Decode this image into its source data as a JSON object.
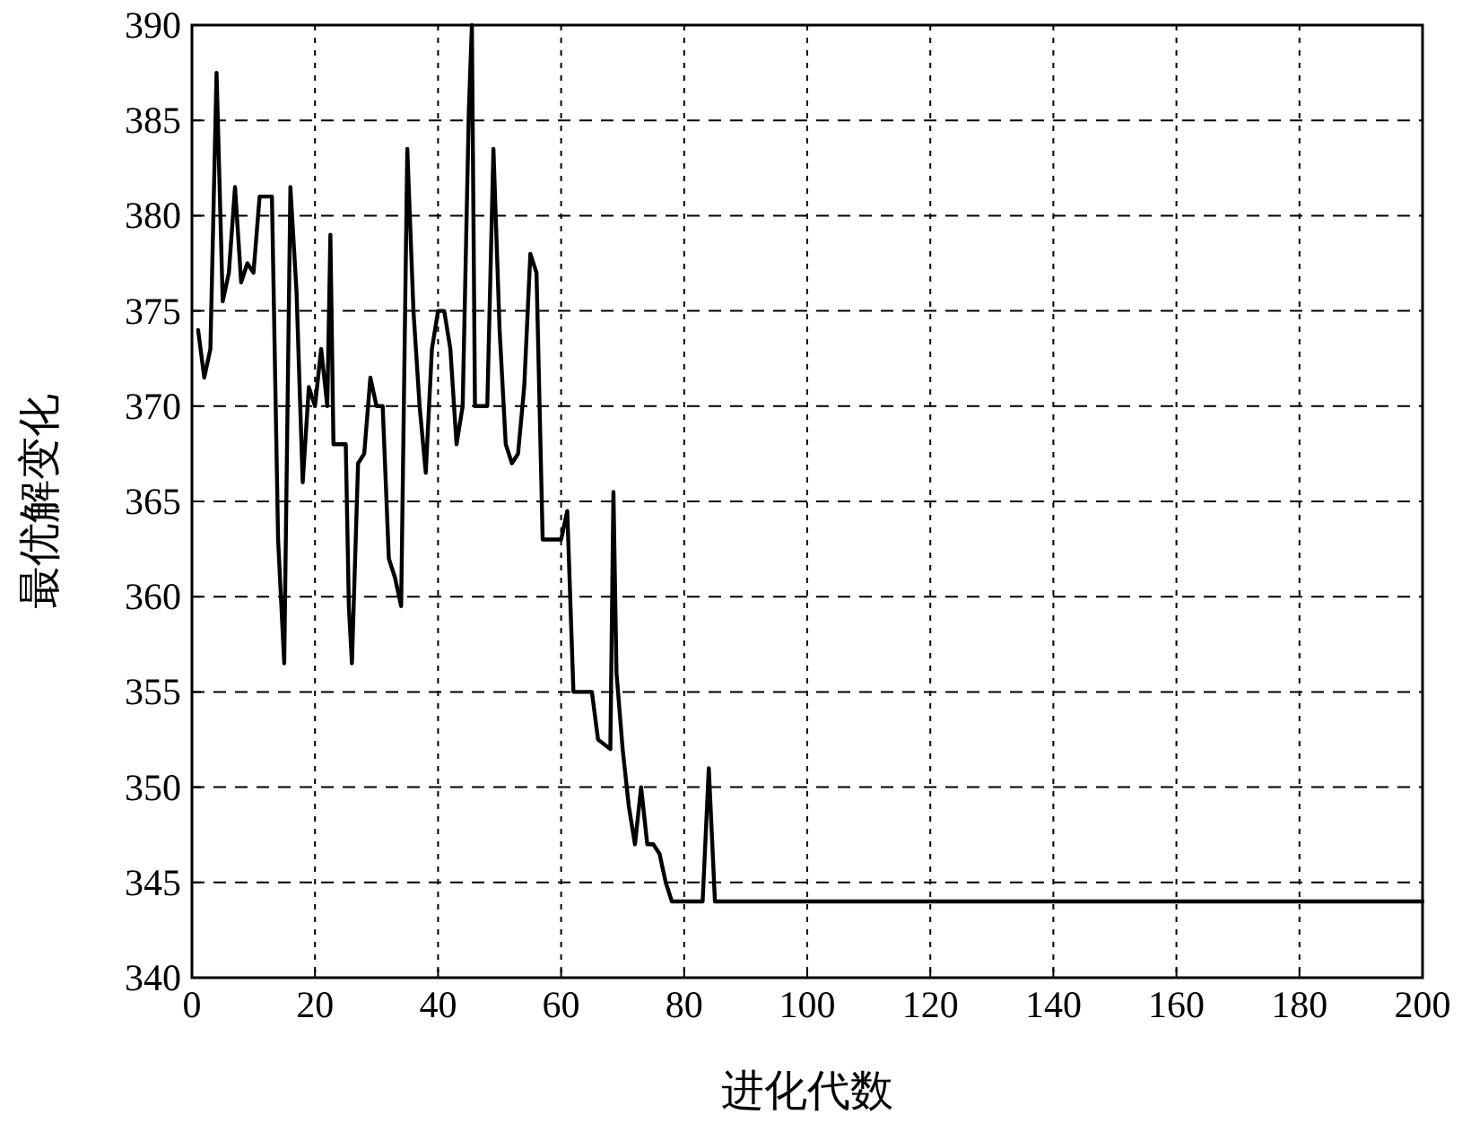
{
  "chart_data": {
    "type": "line",
    "xlabel": "进化代数",
    "ylabel": "最优解变化",
    "xlim": [
      0,
      200
    ],
    "ylim": [
      340,
      390
    ],
    "xticks": [
      0,
      20,
      40,
      60,
      80,
      100,
      120,
      140,
      160,
      180,
      200
    ],
    "yticks": [
      340,
      345,
      350,
      355,
      360,
      365,
      370,
      375,
      380,
      385,
      390
    ],
    "grid": true,
    "marker": "none",
    "series": [
      {
        "color": "#000000",
        "line_style": "solid",
        "x": [
          1,
          2,
          3,
          4,
          5,
          6,
          7,
          8,
          9,
          10,
          11,
          13,
          14,
          15,
          16,
          17,
          18,
          19,
          20,
          21,
          22,
          22.5,
          23,
          25,
          25.5,
          26,
          27,
          28,
          29,
          30,
          31,
          32,
          33,
          34,
          35,
          36,
          37,
          38,
          39,
          40,
          41,
          42,
          43,
          44,
          45,
          45.5,
          46,
          48,
          49,
          50,
          51,
          52,
          53,
          54,
          55,
          56,
          57,
          60,
          61,
          62,
          65,
          66,
          68,
          68.5,
          69,
          70,
          71,
          72,
          73,
          74,
          75,
          76,
          77,
          78,
          83,
          84,
          85,
          200
        ],
        "values": [
          374,
          371.5,
          373,
          387.5,
          375.5,
          377,
          381.5,
          376.5,
          377.5,
          377,
          381,
          381,
          363,
          356.5,
          381.5,
          376,
          366,
          371,
          370,
          373,
          370,
          379,
          368,
          368,
          359.5,
          356.5,
          367,
          367.5,
          371.5,
          370,
          370,
          362,
          361,
          359.5,
          383.5,
          375,
          370,
          366.5,
          373,
          375,
          375,
          373,
          368,
          370,
          385.5,
          390,
          370,
          370,
          383.5,
          374,
          368,
          367,
          367.5,
          371,
          378,
          377,
          363,
          363,
          364.5,
          355,
          355,
          352.5,
          352,
          365.5,
          356,
          352,
          349,
          347,
          350,
          347,
          347,
          346.5,
          345,
          344,
          344,
          351,
          344,
          344
        ]
      }
    ]
  }
}
